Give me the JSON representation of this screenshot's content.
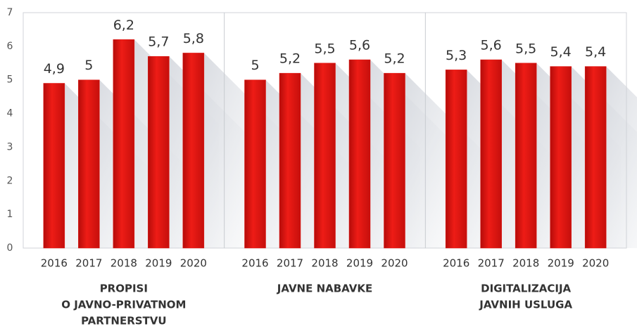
{
  "chart_data": {
    "type": "grouped-bar",
    "groups": [
      {
        "name": [
          "PROPISI",
          "O JAVNO-PRIVATNOM",
          "PARTNERSTVU"
        ],
        "categories": [
          "2016",
          "2017",
          "2018",
          "2019",
          "2020"
        ],
        "values": [
          4.9,
          5,
          6.2,
          5.7,
          5.8
        ],
        "value_labels": [
          "4,9",
          "5",
          "6,2",
          "5,7",
          "5,8"
        ]
      },
      {
        "name": [
          "JAVNE NABAVKE"
        ],
        "categories": [
          "2016",
          "2017",
          "2018",
          "2019",
          "2020"
        ],
        "values": [
          5,
          5.2,
          5.5,
          5.6,
          5.2
        ],
        "value_labels": [
          "5",
          "5,2",
          "5,5",
          "5,6",
          "5,2"
        ]
      },
      {
        "name": [
          "DIGITALIZACIJA",
          "JAVNIH USLUGA"
        ],
        "categories": [
          "2016",
          "2017",
          "2018",
          "2019",
          "2020"
        ],
        "values": [
          5.3,
          5.6,
          5.5,
          5.4,
          5.4
        ],
        "value_labels": [
          "5,3",
          "5,6",
          "5,5",
          "5,4",
          "5,4"
        ]
      }
    ],
    "color": "#e3130f",
    "ylim": [
      0,
      7
    ],
    "yticks": [
      0,
      1,
      2,
      3,
      4,
      5,
      6,
      7
    ]
  }
}
